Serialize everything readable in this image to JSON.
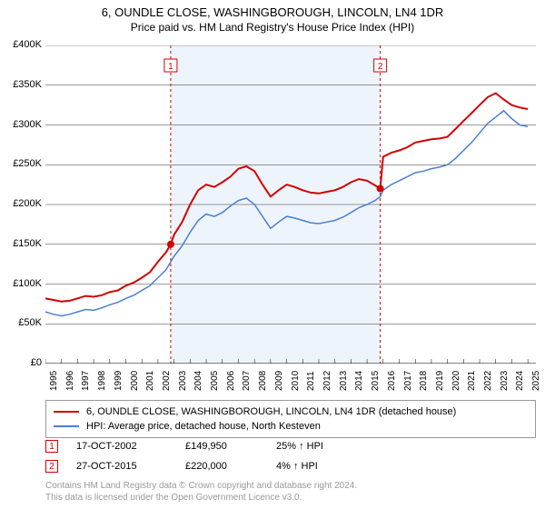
{
  "title_line1": "6, OUNDLE CLOSE, WASHINGBOROUGH, LINCOLN, LN4 1DR",
  "title_line2": "Price paid vs. HM Land Registry's House Price Index (HPI)",
  "chart": {
    "type": "line",
    "plot_bg": "#ffffff",
    "band_bg": "#eef4fb",
    "band_xstart": 2002.79,
    "band_xend": 2015.82,
    "grid_color": "#343434",
    "axis_color": "#000000",
    "xlim": [
      1995,
      2025.5
    ],
    "ylim": [
      0,
      400000
    ],
    "ytick_step": 50000,
    "yticks": [
      "£0",
      "£50K",
      "£100K",
      "£150K",
      "£200K",
      "£250K",
      "£300K",
      "£350K",
      "£400K"
    ],
    "xticks": [
      1995,
      1996,
      1997,
      1998,
      1999,
      2000,
      2001,
      2002,
      2003,
      2004,
      2005,
      2006,
      2007,
      2008,
      2009,
      2010,
      2011,
      2012,
      2013,
      2014,
      2015,
      2016,
      2017,
      2018,
      2019,
      2020,
      2021,
      2022,
      2023,
      2024,
      2025
    ],
    "series": [
      {
        "name": "6, OUNDLE CLOSE, WASHINGBOROUGH, LINCOLN, LN4 1DR (detached house)",
        "color": "#d40000",
        "width": 2,
        "data": [
          [
            1995,
            82000
          ],
          [
            1995.5,
            80000
          ],
          [
            1996,
            78000
          ],
          [
            1996.5,
            79000
          ],
          [
            1997,
            82000
          ],
          [
            1997.5,
            85000
          ],
          [
            1998,
            84000
          ],
          [
            1998.5,
            86000
          ],
          [
            1999,
            90000
          ],
          [
            1999.5,
            92000
          ],
          [
            2000,
            98000
          ],
          [
            2000.5,
            102000
          ],
          [
            2001,
            108000
          ],
          [
            2001.5,
            115000
          ],
          [
            2002,
            128000
          ],
          [
            2002.5,
            140000
          ],
          [
            2002.79,
            149950
          ],
          [
            2003,
            162000
          ],
          [
            2003.5,
            178000
          ],
          [
            2004,
            200000
          ],
          [
            2004.5,
            218000
          ],
          [
            2005,
            225000
          ],
          [
            2005.5,
            222000
          ],
          [
            2006,
            228000
          ],
          [
            2006.5,
            235000
          ],
          [
            2007,
            245000
          ],
          [
            2007.5,
            248000
          ],
          [
            2008,
            242000
          ],
          [
            2008.5,
            225000
          ],
          [
            2009,
            210000
          ],
          [
            2009.5,
            218000
          ],
          [
            2010,
            225000
          ],
          [
            2010.5,
            222000
          ],
          [
            2011,
            218000
          ],
          [
            2011.5,
            215000
          ],
          [
            2012,
            214000
          ],
          [
            2012.5,
            216000
          ],
          [
            2013,
            218000
          ],
          [
            2013.5,
            222000
          ],
          [
            2014,
            228000
          ],
          [
            2014.5,
            232000
          ],
          [
            2015,
            230000
          ],
          [
            2015.5,
            224000
          ],
          [
            2015.82,
            220000
          ],
          [
            2016,
            260000
          ],
          [
            2016.5,
            265000
          ],
          [
            2017,
            268000
          ],
          [
            2017.5,
            272000
          ],
          [
            2018,
            278000
          ],
          [
            2018.5,
            280000
          ],
          [
            2019,
            282000
          ],
          [
            2019.5,
            283000
          ],
          [
            2020,
            285000
          ],
          [
            2020.5,
            295000
          ],
          [
            2021,
            305000
          ],
          [
            2021.5,
            315000
          ],
          [
            2022,
            325000
          ],
          [
            2022.5,
            335000
          ],
          [
            2023,
            340000
          ],
          [
            2023.5,
            332000
          ],
          [
            2024,
            325000
          ],
          [
            2024.5,
            322000
          ],
          [
            2025,
            320000
          ]
        ]
      },
      {
        "name": "HPI: Average price, detached house, North Kesteven",
        "color": "#4a7fd4",
        "width": 1.5,
        "data": [
          [
            1995,
            65000
          ],
          [
            1995.5,
            62000
          ],
          [
            1996,
            60000
          ],
          [
            1996.5,
            62000
          ],
          [
            1997,
            65000
          ],
          [
            1997.5,
            68000
          ],
          [
            1998,
            67000
          ],
          [
            1998.5,
            70000
          ],
          [
            1999,
            74000
          ],
          [
            1999.5,
            77000
          ],
          [
            2000,
            82000
          ],
          [
            2000.5,
            86000
          ],
          [
            2001,
            92000
          ],
          [
            2001.5,
            98000
          ],
          [
            2002,
            108000
          ],
          [
            2002.5,
            118000
          ],
          [
            2003,
            135000
          ],
          [
            2003.5,
            148000
          ],
          [
            2004,
            165000
          ],
          [
            2004.5,
            180000
          ],
          [
            2005,
            188000
          ],
          [
            2005.5,
            185000
          ],
          [
            2006,
            190000
          ],
          [
            2006.5,
            198000
          ],
          [
            2007,
            205000
          ],
          [
            2007.5,
            208000
          ],
          [
            2008,
            200000
          ],
          [
            2008.5,
            185000
          ],
          [
            2009,
            170000
          ],
          [
            2009.5,
            178000
          ],
          [
            2010,
            185000
          ],
          [
            2010.5,
            183000
          ],
          [
            2011,
            180000
          ],
          [
            2011.5,
            177000
          ],
          [
            2012,
            176000
          ],
          [
            2012.5,
            178000
          ],
          [
            2013,
            180000
          ],
          [
            2013.5,
            184000
          ],
          [
            2014,
            190000
          ],
          [
            2014.5,
            196000
          ],
          [
            2015,
            200000
          ],
          [
            2015.5,
            205000
          ],
          [
            2015.82,
            210000
          ],
          [
            2016,
            218000
          ],
          [
            2016.5,
            225000
          ],
          [
            2017,
            230000
          ],
          [
            2017.5,
            235000
          ],
          [
            2018,
            240000
          ],
          [
            2018.5,
            242000
          ],
          [
            2019,
            245000
          ],
          [
            2019.5,
            247000
          ],
          [
            2020,
            250000
          ],
          [
            2020.5,
            258000
          ],
          [
            2021,
            268000
          ],
          [
            2021.5,
            278000
          ],
          [
            2022,
            290000
          ],
          [
            2022.5,
            302000
          ],
          [
            2023,
            310000
          ],
          [
            2023.5,
            318000
          ],
          [
            2024,
            308000
          ],
          [
            2024.5,
            300000
          ],
          [
            2025,
            298000
          ]
        ]
      }
    ],
    "markers": [
      {
        "num": "1",
        "x": 2002.79,
        "y": 149950,
        "dot_color": "#d40000",
        "badge_border": "#d40000",
        "badge_text": "#d40000",
        "date": "17-OCT-2002",
        "price": "£149,950",
        "pct": "25% ↑ HPI",
        "badge_y_offset": 120
      },
      {
        "num": "2",
        "x": 2015.82,
        "y": 220000,
        "dot_color": "#d40000",
        "badge_border": "#d40000",
        "badge_text": "#d40000",
        "date": "27-OCT-2015",
        "price": "£220,000",
        "pct": "4% ↑ HPI",
        "badge_y_offset": 120
      }
    ]
  },
  "legend": [
    {
      "color": "#d40000",
      "label": "6, OUNDLE CLOSE, WASHINGBOROUGH, LINCOLN, LN4 1DR (detached house)"
    },
    {
      "color": "#4a7fd4",
      "label": "HPI: Average price, detached house, North Kesteven"
    }
  ],
  "footnote_line1": "Contains HM Land Registry data © Crown copyright and database right 2024.",
  "footnote_line2": "This data is licensed under the Open Government Licence v3.0."
}
